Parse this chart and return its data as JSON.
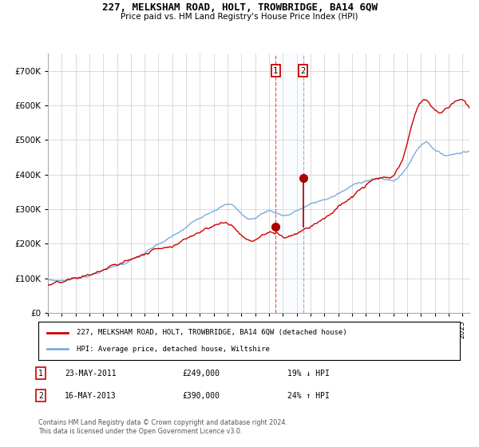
{
  "title": "227, MELKSHAM ROAD, HOLT, TROWBRIDGE, BA14 6QW",
  "subtitle": "Price paid vs. HM Land Registry's House Price Index (HPI)",
  "legend_line1": "227, MELKSHAM ROAD, HOLT, TROWBRIDGE, BA14 6QW (detached house)",
  "legend_line2": "HPI: Average price, detached house, Wiltshire",
  "footnote": "Contains HM Land Registry data © Crown copyright and database right 2024.\nThis data is licensed under the Open Government Licence v3.0.",
  "transaction1_label": "1",
  "transaction1_date": "23-MAY-2011",
  "transaction1_price": 249000,
  "transaction1_hpi_pct": "19% ↓ HPI",
  "transaction2_label": "2",
  "transaction2_date": "16-MAY-2013",
  "transaction2_price": 390000,
  "transaction2_hpi_pct": "24% ↑ HPI",
  "hpi_color": "#7aaddb",
  "price_color": "#cc0000",
  "marker_color": "#aa0000",
  "bg_color": "#ffffff",
  "grid_color": "#cccccc",
  "ylim": [
    0,
    750000
  ],
  "yticks": [
    0,
    100000,
    200000,
    300000,
    400000,
    500000,
    600000,
    700000
  ],
  "shade_color": "#ddeeff",
  "vline1_color": "#dd4444",
  "vline2_color": "#88aacc",
  "xstart": 1995,
  "xend": 2025.5
}
